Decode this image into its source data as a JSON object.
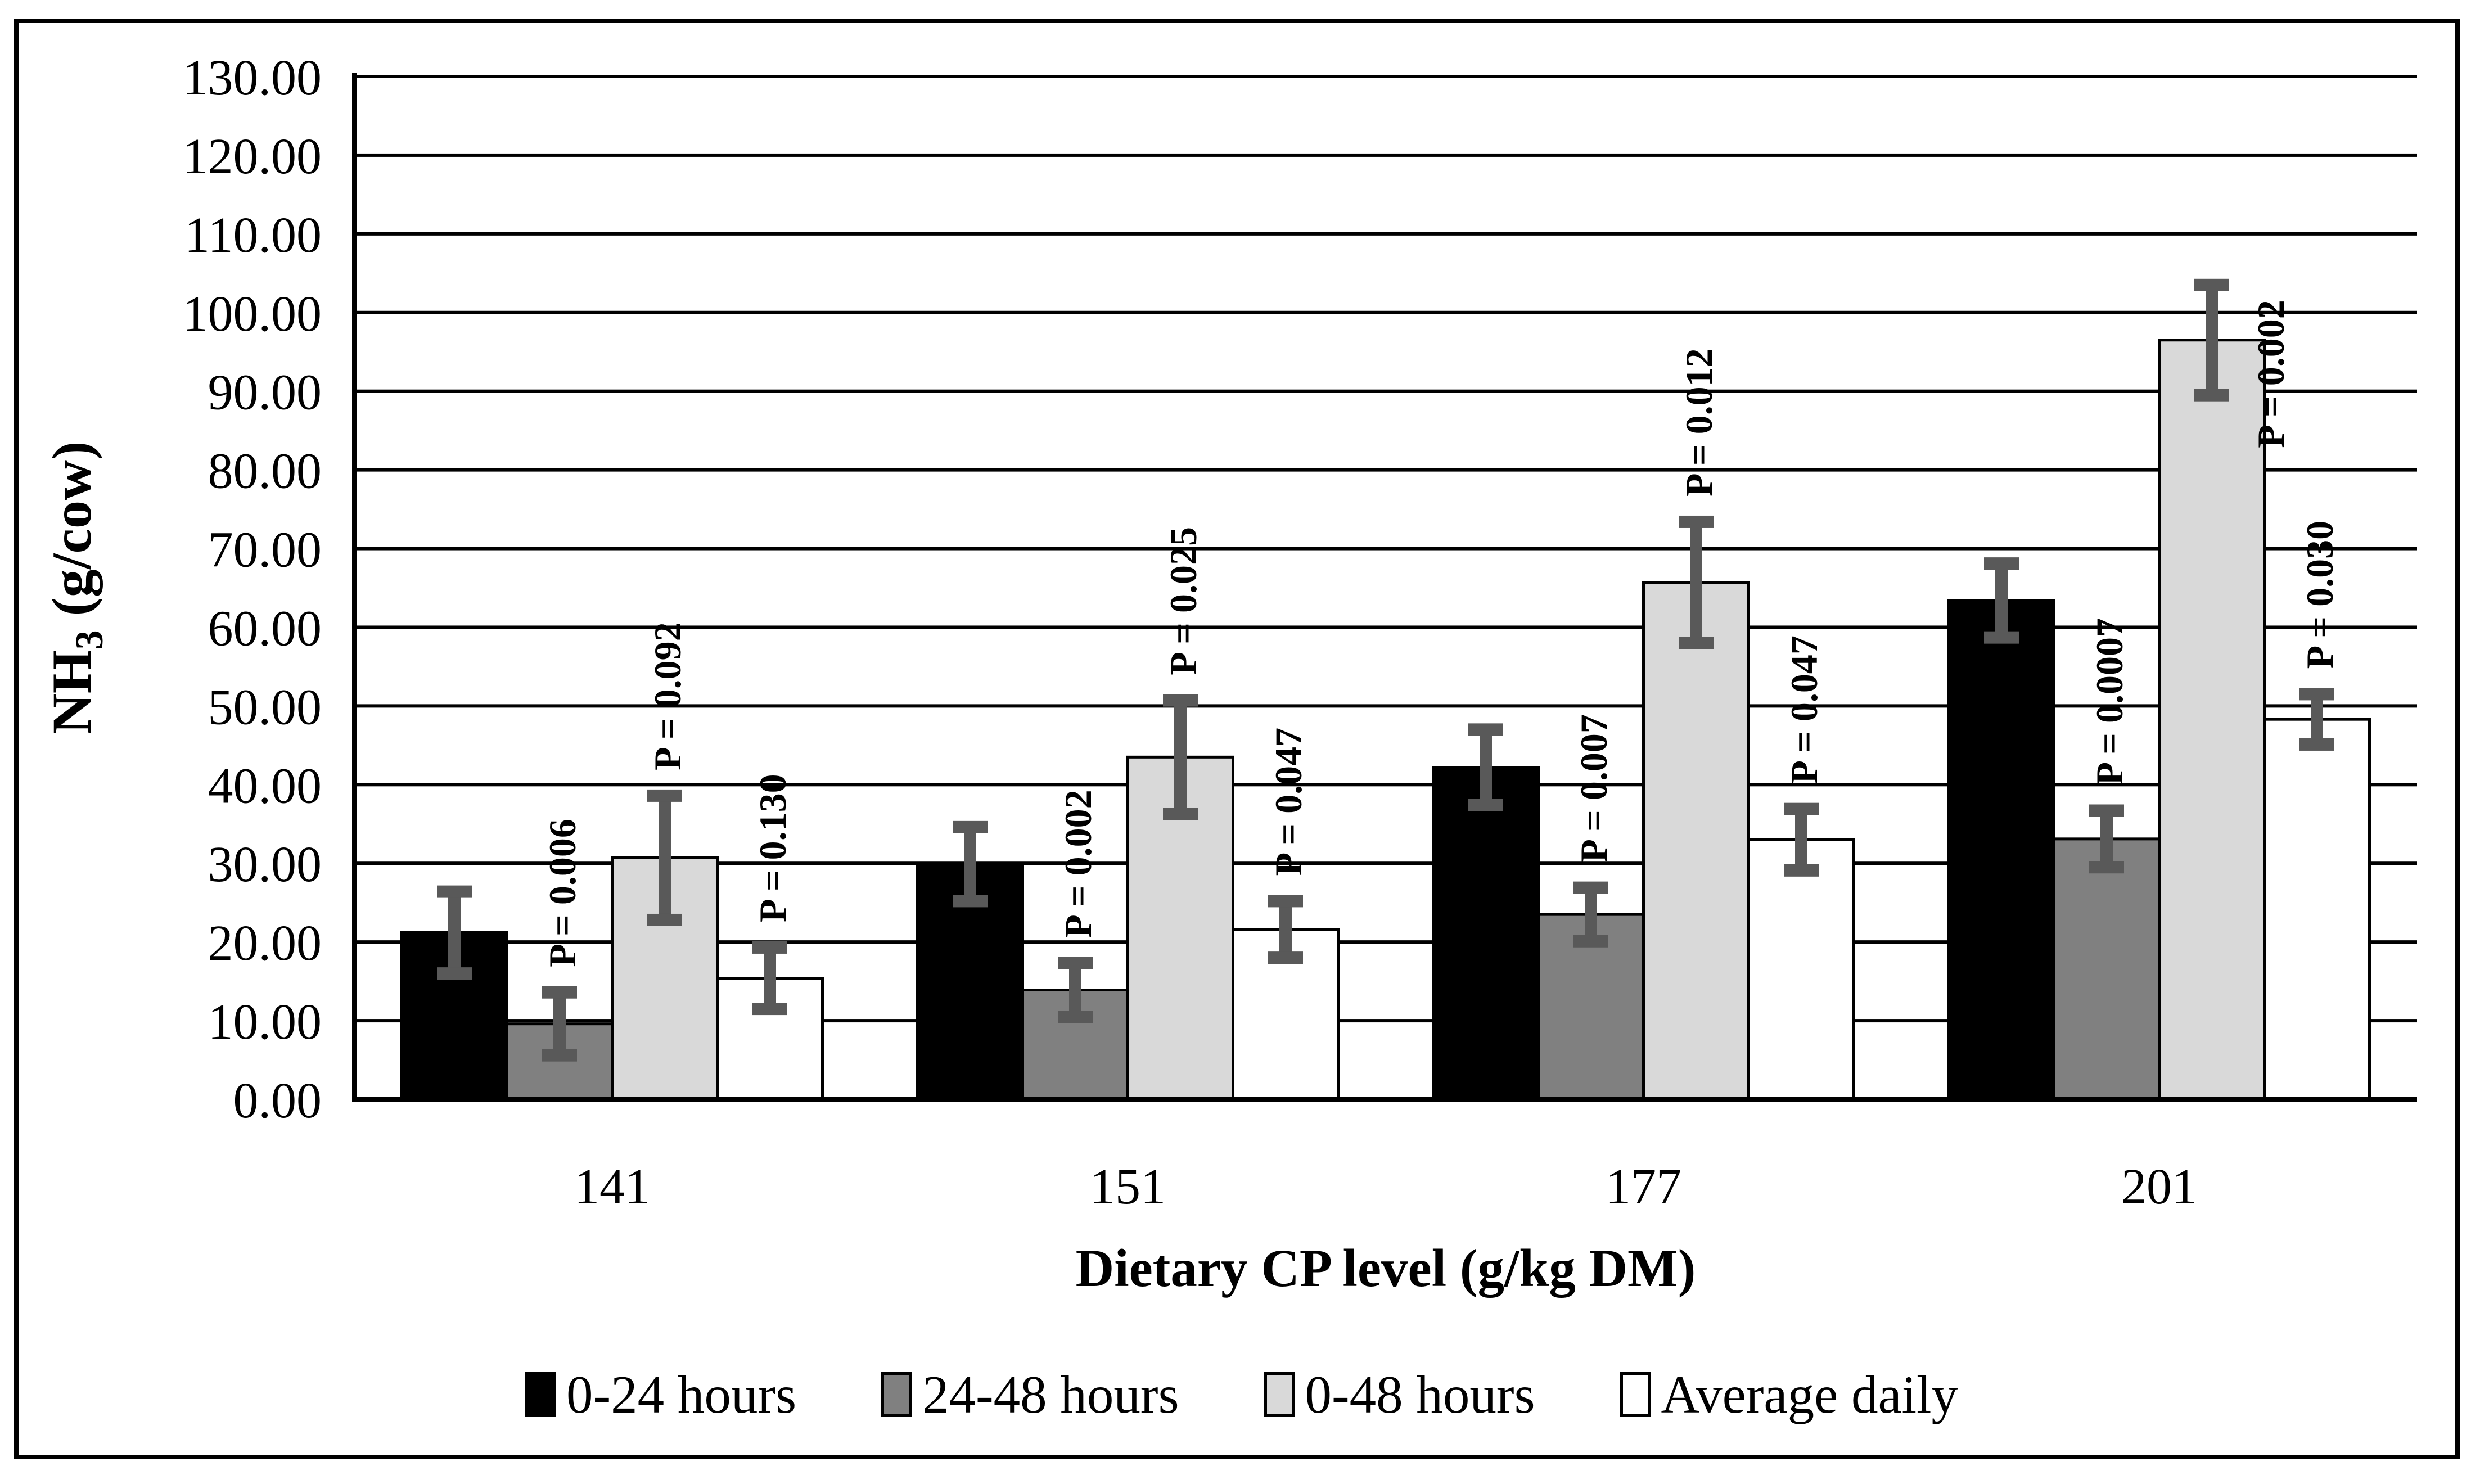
{
  "figure": {
    "border_color": "#000000",
    "background": "#ffffff"
  },
  "chart_data": {
    "type": "bar",
    "title": "",
    "xlabel": "Dietary CP level (g/kg DM)",
    "ylabel": "NH3 (g/cow)",
    "ylabel_parts": {
      "pre": "NH",
      "sub": "3",
      "post": " (g/cow)"
    },
    "ylim": [
      0,
      130
    ],
    "ytick_step": 10,
    "y_tick_labels": [
      "0.00",
      "10.00",
      "20.00",
      "30.00",
      "40.00",
      "50.00",
      "60.00",
      "70.00",
      "80.00",
      "90.00",
      "100.00",
      "110.00",
      "120.00",
      "130.00"
    ],
    "grid": true,
    "legend_position": "bottom",
    "categories": [
      "141",
      "151",
      "177",
      "201"
    ],
    "series": [
      {
        "name": "0-24 hours",
        "color": "#000000",
        "values": [
          21.2,
          29.9,
          42.2,
          63.4
        ],
        "error": [
          5.2,
          4.7,
          4.8,
          4.7
        ],
        "p_values": [
          null,
          null,
          null,
          null
        ]
      },
      {
        "name": "24-48 hours",
        "color": "#808080",
        "values": [
          9.6,
          13.9,
          23.5,
          33.1
        ],
        "error": [
          4.0,
          3.4,
          3.4,
          3.6
        ],
        "p_values": [
          "0.006",
          "0.002",
          "0.007",
          "0.0007"
        ]
      },
      {
        "name": "0-48 hours",
        "color": "#D9D9D9",
        "values": [
          30.7,
          43.5,
          65.7,
          96.5
        ],
        "error": [
          7.9,
          7.2,
          7.7,
          7.0
        ],
        "p_values": [
          "0.092",
          "0.025",
          "0.012",
          "0.002"
        ]
      },
      {
        "name": "Average daily",
        "color": "#FFFFFF",
        "values": [
          15.4,
          21.6,
          33.0,
          48.3
        ],
        "error": [
          3.9,
          3.6,
          3.9,
          3.2
        ],
        "p_values": [
          "0.130",
          "0.047",
          "0.047",
          "0.030"
        ]
      }
    ],
    "p_label_prefix": "P = ",
    "error_bar_color": "#595959",
    "axis_color": "#000000"
  }
}
